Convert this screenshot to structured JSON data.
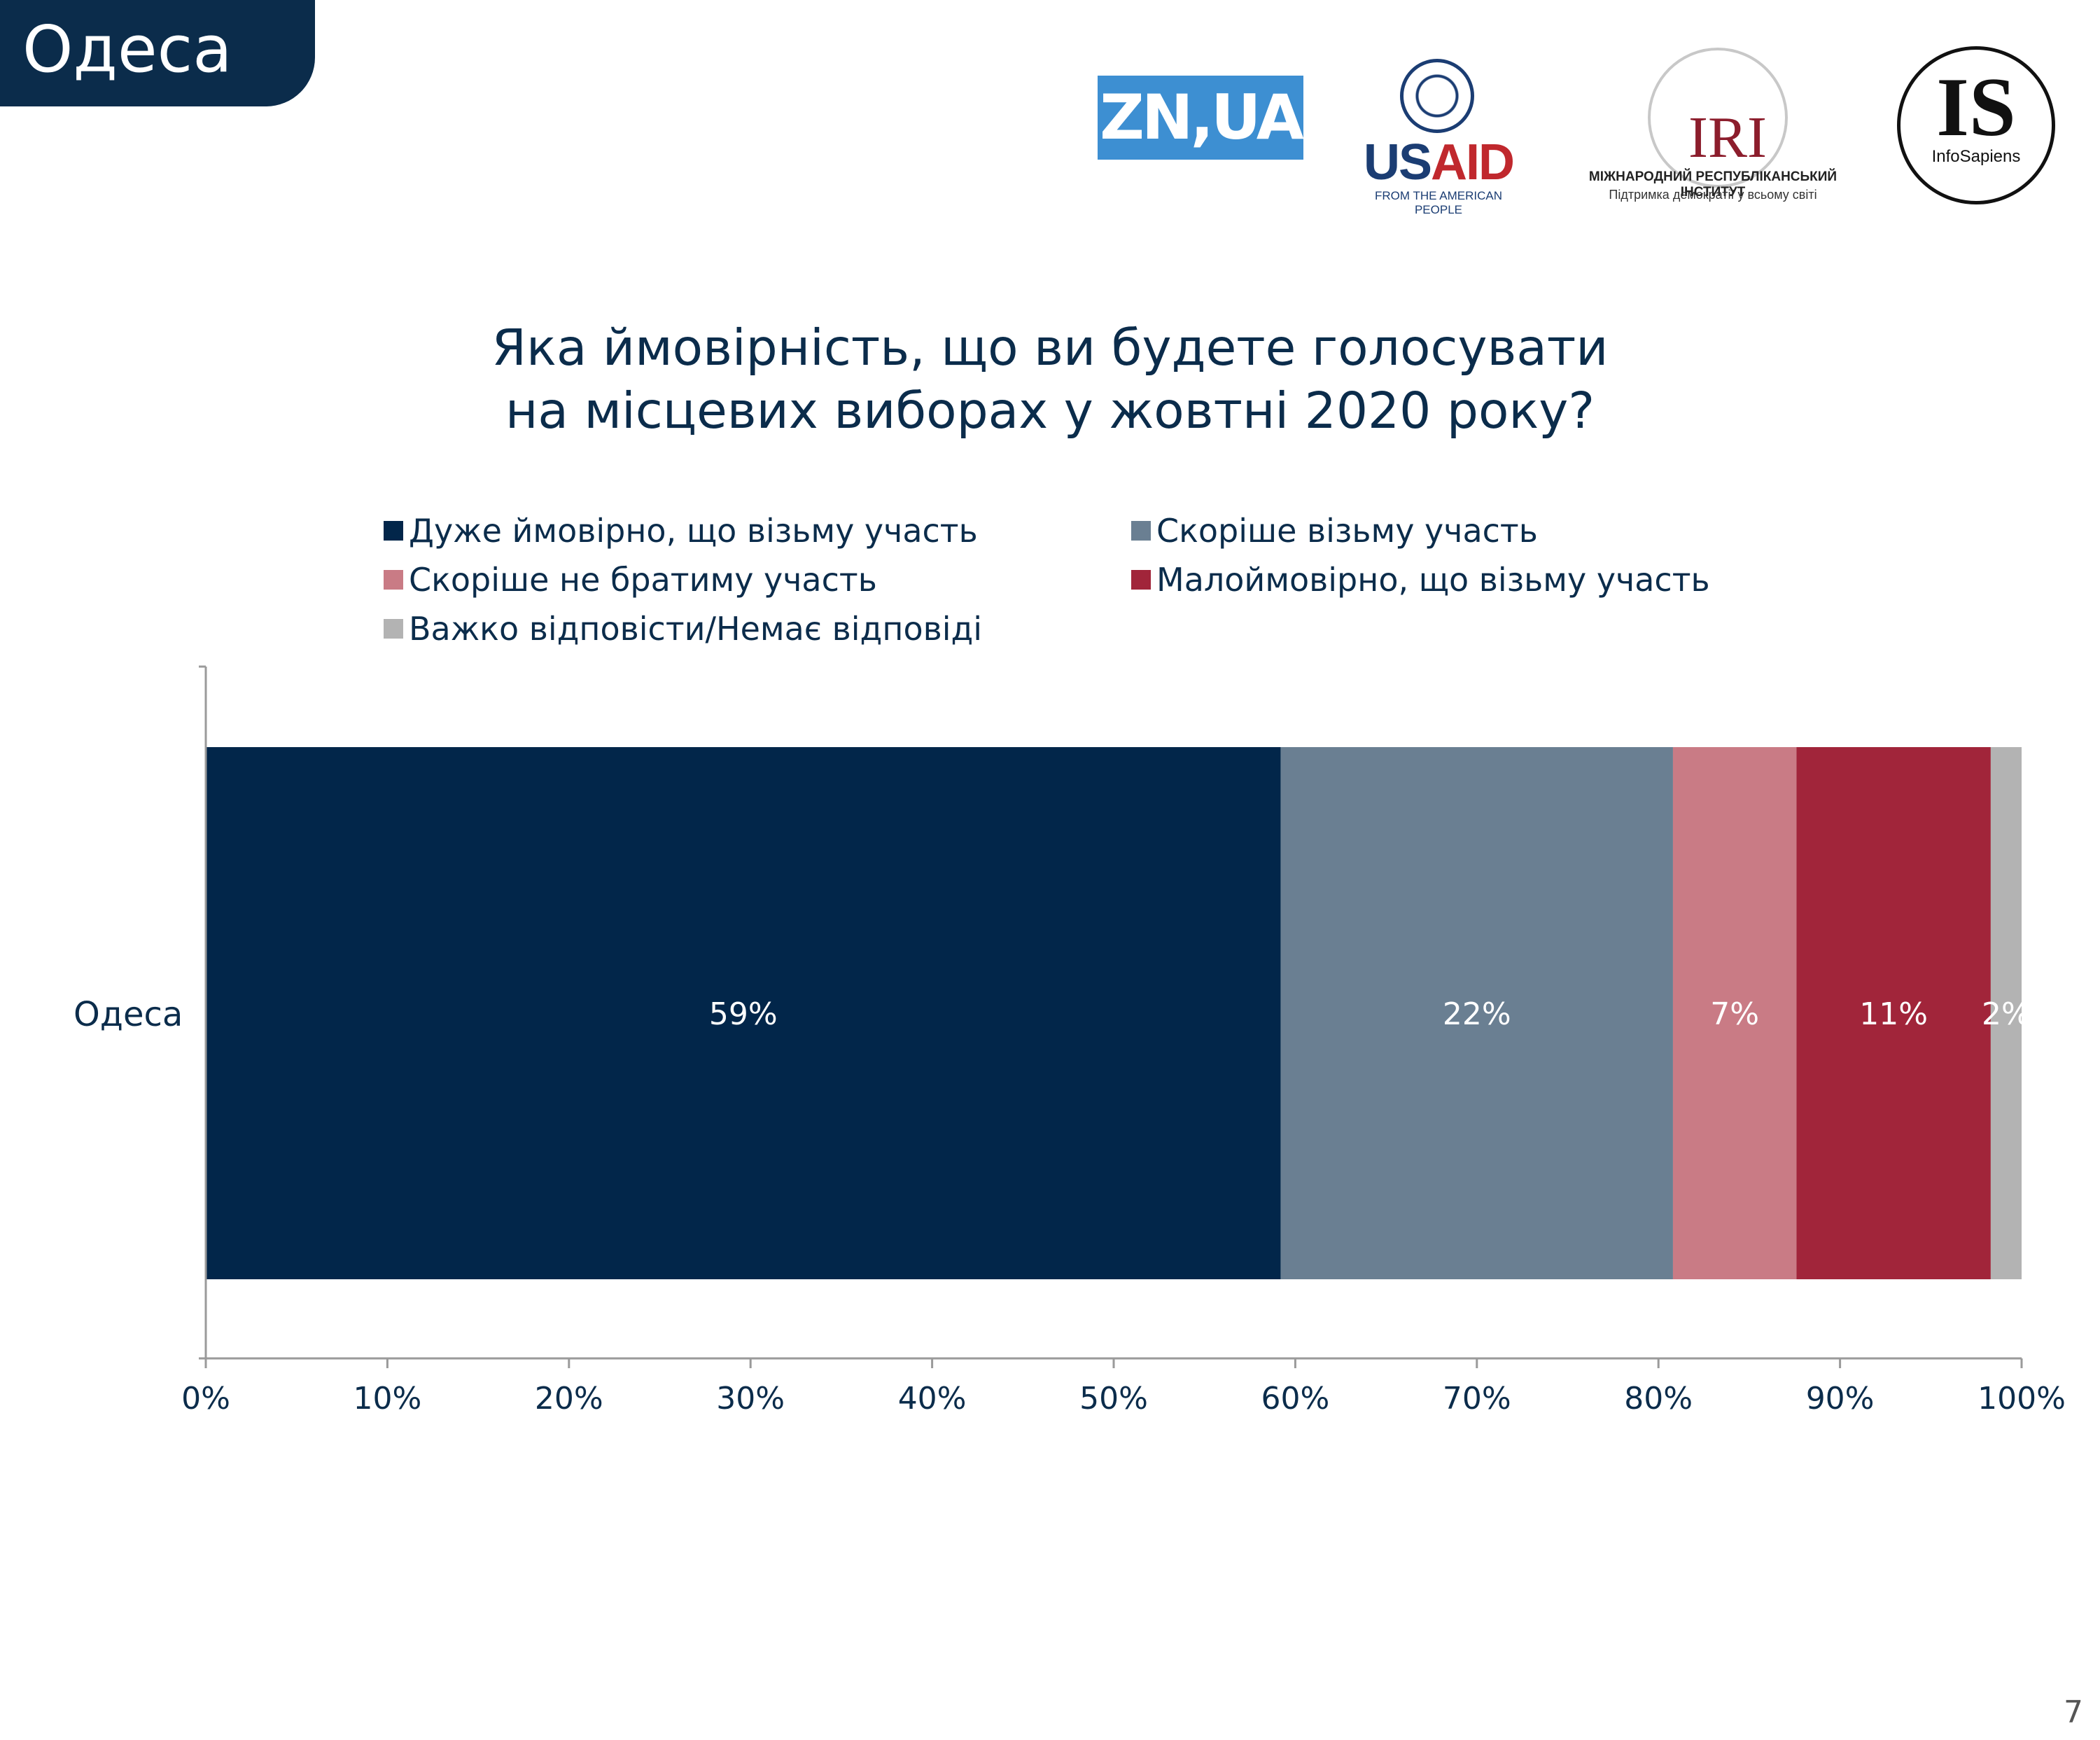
{
  "header": {
    "section_title": "Одеса"
  },
  "logos": {
    "zn": "ZN,UA",
    "usaid": {
      "word_part1": "US",
      "word_part2": "AID",
      "tagline": "FROM THE AMERICAN PEOPLE"
    },
    "iri": {
      "word": "IRI",
      "line1": "МІЖНАРОДНИЙ РЕСПУБЛІКАНСЬКИЙ ІНСТИТУТ",
      "line2": "Підтримка демократії у всьому світі"
    },
    "infosapiens": {
      "big": "IS",
      "small": "InfoSapiens"
    }
  },
  "chart_data": {
    "type": "bar",
    "orientation": "horizontal",
    "stacked": true,
    "title": [
      "Яка ймовірність, що ви будете голосувати",
      "на місцевих виборах у жовтні 2020 року?"
    ],
    "categories": [
      "Одеса"
    ],
    "series": [
      {
        "name": "Дуже ймовірно, що візьму участь",
        "values": [
          59.2
        ],
        "data_label": "59%",
        "color": "#02264a"
      },
      {
        "name": "Скоріше візьму участь",
        "values": [
          21.6
        ],
        "data_label": "22%",
        "color": "#6a7f92"
      },
      {
        "name": "Скоріше не братиму участь",
        "values": [
          6.8
        ],
        "data_label": "7%",
        "color": "#c97b85"
      },
      {
        "name": "Малоймовірно, що візьму участь",
        "values": [
          10.7
        ],
        "data_label": "11%",
        "color": "#a1253a"
      },
      {
        "name": "Важко відповісти/Немає відповіді",
        "values": [
          1.7
        ],
        "data_label": "2%",
        "color": "#b3b3b3"
      }
    ],
    "x_ticks": [
      "0%",
      "10%",
      "20%",
      "30%",
      "40%",
      "50%",
      "60%",
      "70%",
      "80%",
      "90%",
      "100%"
    ],
    "xlim": [
      0,
      100
    ],
    "grid": false,
    "legend_position": "top"
  },
  "page_number": "7"
}
